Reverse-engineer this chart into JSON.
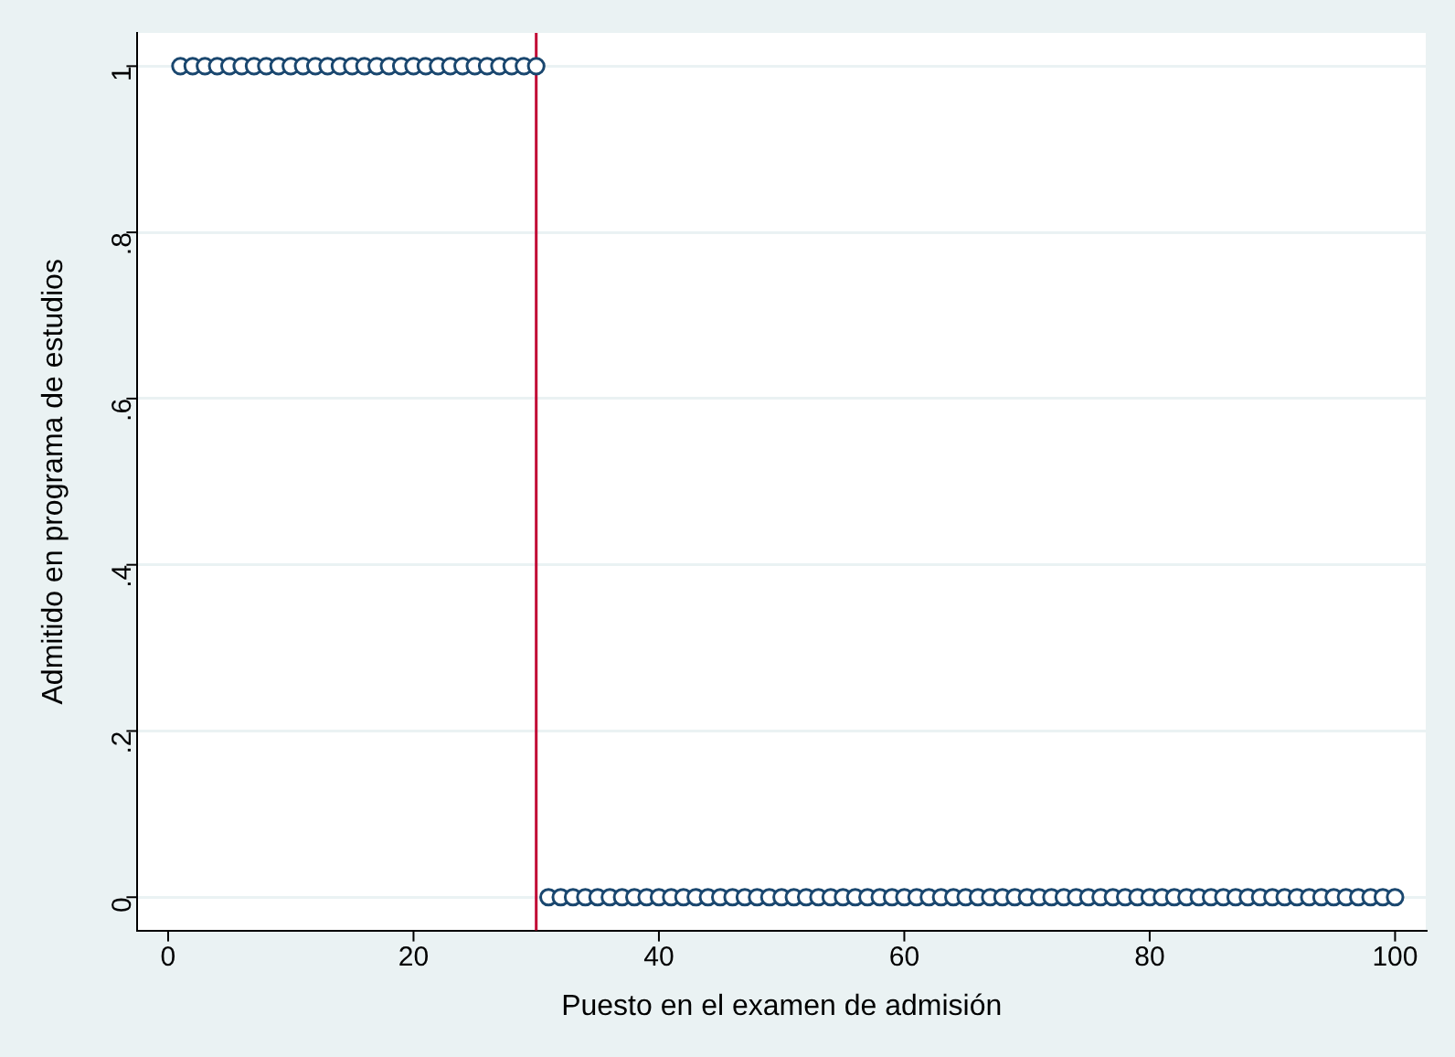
{
  "chart_data": {
    "type": "scatter",
    "xlabel": "Puesto en el examen de admisión",
    "ylabel": "Admitido en programa de estudios",
    "x": [
      1,
      2,
      3,
      4,
      5,
      6,
      7,
      8,
      9,
      10,
      11,
      12,
      13,
      14,
      15,
      16,
      17,
      18,
      19,
      20,
      21,
      22,
      23,
      24,
      25,
      26,
      27,
      28,
      29,
      30,
      31,
      32,
      33,
      34,
      35,
      36,
      37,
      38,
      39,
      40,
      41,
      42,
      43,
      44,
      45,
      46,
      47,
      48,
      49,
      50,
      51,
      52,
      53,
      54,
      55,
      56,
      57,
      58,
      59,
      60,
      61,
      62,
      63,
      64,
      65,
      66,
      67,
      68,
      69,
      70,
      71,
      72,
      73,
      74,
      75,
      76,
      77,
      78,
      79,
      80,
      81,
      82,
      83,
      84,
      85,
      86,
      87,
      88,
      89,
      90,
      91,
      92,
      93,
      94,
      95,
      96,
      97,
      98,
      99,
      100
    ],
    "series": [
      {
        "color": "#1a476f",
        "values": [
          1,
          1,
          1,
          1,
          1,
          1,
          1,
          1,
          1,
          1,
          1,
          1,
          1,
          1,
          1,
          1,
          1,
          1,
          1,
          1,
          1,
          1,
          1,
          1,
          1,
          1,
          1,
          1,
          1,
          1,
          0,
          0,
          0,
          0,
          0,
          0,
          0,
          0,
          0,
          0,
          0,
          0,
          0,
          0,
          0,
          0,
          0,
          0,
          0,
          0,
          0,
          0,
          0,
          0,
          0,
          0,
          0,
          0,
          0,
          0,
          0,
          0,
          0,
          0,
          0,
          0,
          0,
          0,
          0,
          0,
          0,
          0,
          0,
          0,
          0,
          0,
          0,
          0,
          0,
          0,
          0,
          0,
          0,
          0,
          0,
          0,
          0,
          0,
          0,
          0,
          0,
          0,
          0,
          0,
          0,
          0,
          0,
          0,
          0,
          0
        ]
      }
    ],
    "xlim": [
      -2.5,
      102.5
    ],
    "xticks": [
      0,
      20,
      40,
      60,
      80,
      100
    ],
    "ylim": [
      -0.04,
      1.04
    ],
    "yticks": [
      0,
      {
        "value": 0.2,
        "label": ".2"
      },
      {
        "value": 0.4,
        "label": ".4"
      },
      {
        "value": 0.6,
        "label": ".6"
      },
      {
        "value": 0.8,
        "label": ".8"
      },
      1
    ],
    "ref_lines": [
      {
        "axis": "x",
        "value": 30,
        "color": "#c10534"
      }
    ],
    "grid": "y",
    "legend": false,
    "marker": "circle"
  }
}
